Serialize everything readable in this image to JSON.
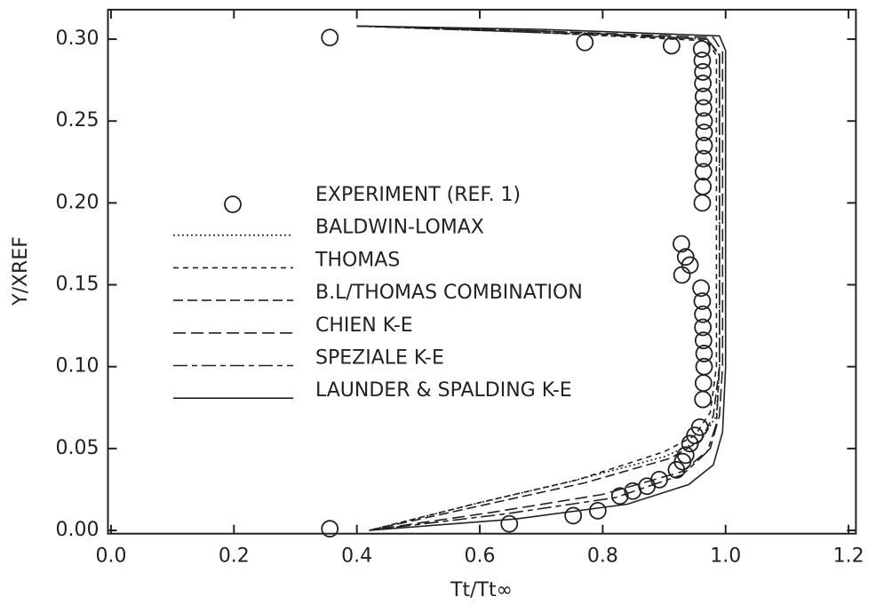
{
  "chart_data": {
    "type": "line",
    "xlabel": "Tt/Tt∞",
    "ylabel": "Y/XREF",
    "xlim": [
      -0.005,
      1.212
    ],
    "ylim": [
      -0.002,
      0.318
    ],
    "xticks": [
      {
        "value": 0,
        "label": "0.0"
      },
      0.2,
      0.4,
      0.6,
      0.8,
      {
        "value": 1,
        "label": "1.0"
      },
      1.2
    ],
    "yticks": [
      {
        "value": 0,
        "label": "0.00"
      },
      0.05,
      {
        "value": 0.1,
        "label": "0.10"
      },
      0.15,
      {
        "value": 0.2,
        "label": "0.20"
      },
      0.25,
      {
        "value": 0.3,
        "label": "0.30"
      }
    ],
    "grid": false,
    "legend": "center",
    "series": [
      {
        "name": "EXPERIMENT (REF. 1)",
        "color": "#222222",
        "style": "markers",
        "x": [
          0.356,
          0.771,
          0.912,
          0.961,
          0.962,
          0.963,
          0.963,
          0.964,
          0.964,
          0.965,
          0.965,
          0.965,
          0.964,
          0.964,
          0.963,
          0.962,
          0.928,
          0.935,
          0.942,
          0.929,
          0.96,
          0.962,
          0.963,
          0.963,
          0.964,
          0.965,
          0.965,
          0.964,
          0.963,
          0.958,
          0.95,
          0.942,
          0.935,
          0.93,
          0.92,
          0.892,
          0.872,
          0.849,
          0.828,
          0.792,
          0.752,
          0.648,
          0.356
        ],
        "values": [
          0.301,
          0.298,
          0.296,
          0.294,
          0.287,
          0.28,
          0.273,
          0.265,
          0.258,
          0.25,
          0.243,
          0.235,
          0.227,
          0.219,
          0.21,
          0.2,
          0.175,
          0.167,
          0.162,
          0.156,
          0.148,
          0.14,
          0.132,
          0.124,
          0.116,
          0.108,
          0.1,
          0.09,
          0.08,
          0.063,
          0.058,
          0.053,
          0.046,
          0.042,
          0.037,
          0.031,
          0.027,
          0.024,
          0.021,
          0.012,
          0.009,
          0.004,
          0.001
        ]
      },
      {
        "name": "BALDWIN-LOMAX",
        "color": "#222222",
        "style": "dotted",
        "x": [
          0.4,
          0.7,
          0.97,
          0.99,
          0.99,
          0.985,
          0.96,
          0.9,
          0.75,
          0.6,
          0.42
        ],
        "values": [
          0.308,
          0.305,
          0.3,
          0.29,
          0.1,
          0.07,
          0.055,
          0.045,
          0.03,
          0.017,
          0
        ]
      },
      {
        "name": "THOMAS",
        "color": "#222222",
        "style": "dashed",
        "x": [
          0.4,
          0.7,
          0.97,
          0.985,
          0.985,
          0.975,
          0.95,
          0.9,
          0.76,
          0.6,
          0.42
        ],
        "values": [
          0.308,
          0.304,
          0.299,
          0.29,
          0.1,
          0.072,
          0.058,
          0.048,
          0.031,
          0.017,
          0
        ]
      },
      {
        "name": "B.L/THOMAS COMBINATION",
        "color": "#222222",
        "style": "longdash",
        "x": [
          0.4,
          0.7,
          0.97,
          0.99,
          0.99,
          0.98,
          0.96,
          0.91,
          0.77,
          0.6,
          0.42
        ],
        "values": [
          0.308,
          0.305,
          0.3,
          0.291,
          0.1,
          0.07,
          0.055,
          0.044,
          0.029,
          0.015,
          0
        ]
      },
      {
        "name": "CHIEN K-E",
        "color": "#222222",
        "style": "dashdot",
        "x": [
          0.4,
          0.7,
          0.98,
          0.995,
          0.995,
          0.99,
          0.975,
          0.93,
          0.8,
          0.62,
          0.42
        ],
        "values": [
          0.308,
          0.305,
          0.301,
          0.292,
          0.1,
          0.07,
          0.05,
          0.036,
          0.022,
          0.011,
          0
        ]
      },
      {
        "name": "SPEZIALE K-E",
        "color": "#222222",
        "style": "longshort",
        "x": [
          0.4,
          0.7,
          0.97,
          0.99,
          0.99,
          0.985,
          0.97,
          0.93,
          0.82,
          0.64,
          0.42
        ],
        "values": [
          0.308,
          0.304,
          0.3,
          0.29,
          0.1,
          0.065,
          0.048,
          0.034,
          0.02,
          0.01,
          0
        ]
      },
      {
        "name": "LAUNDER & SPALDING K-E",
        "color": "#222222",
        "style": "solid",
        "x": [
          0.4,
          0.7,
          0.99,
          1.0,
          1.0,
          0.995,
          0.98,
          0.94,
          0.84,
          0.66,
          0.42
        ],
        "values": [
          0.308,
          0.306,
          0.302,
          0.293,
          0.1,
          0.06,
          0.04,
          0.028,
          0.016,
          0.007,
          0
        ]
      }
    ]
  }
}
